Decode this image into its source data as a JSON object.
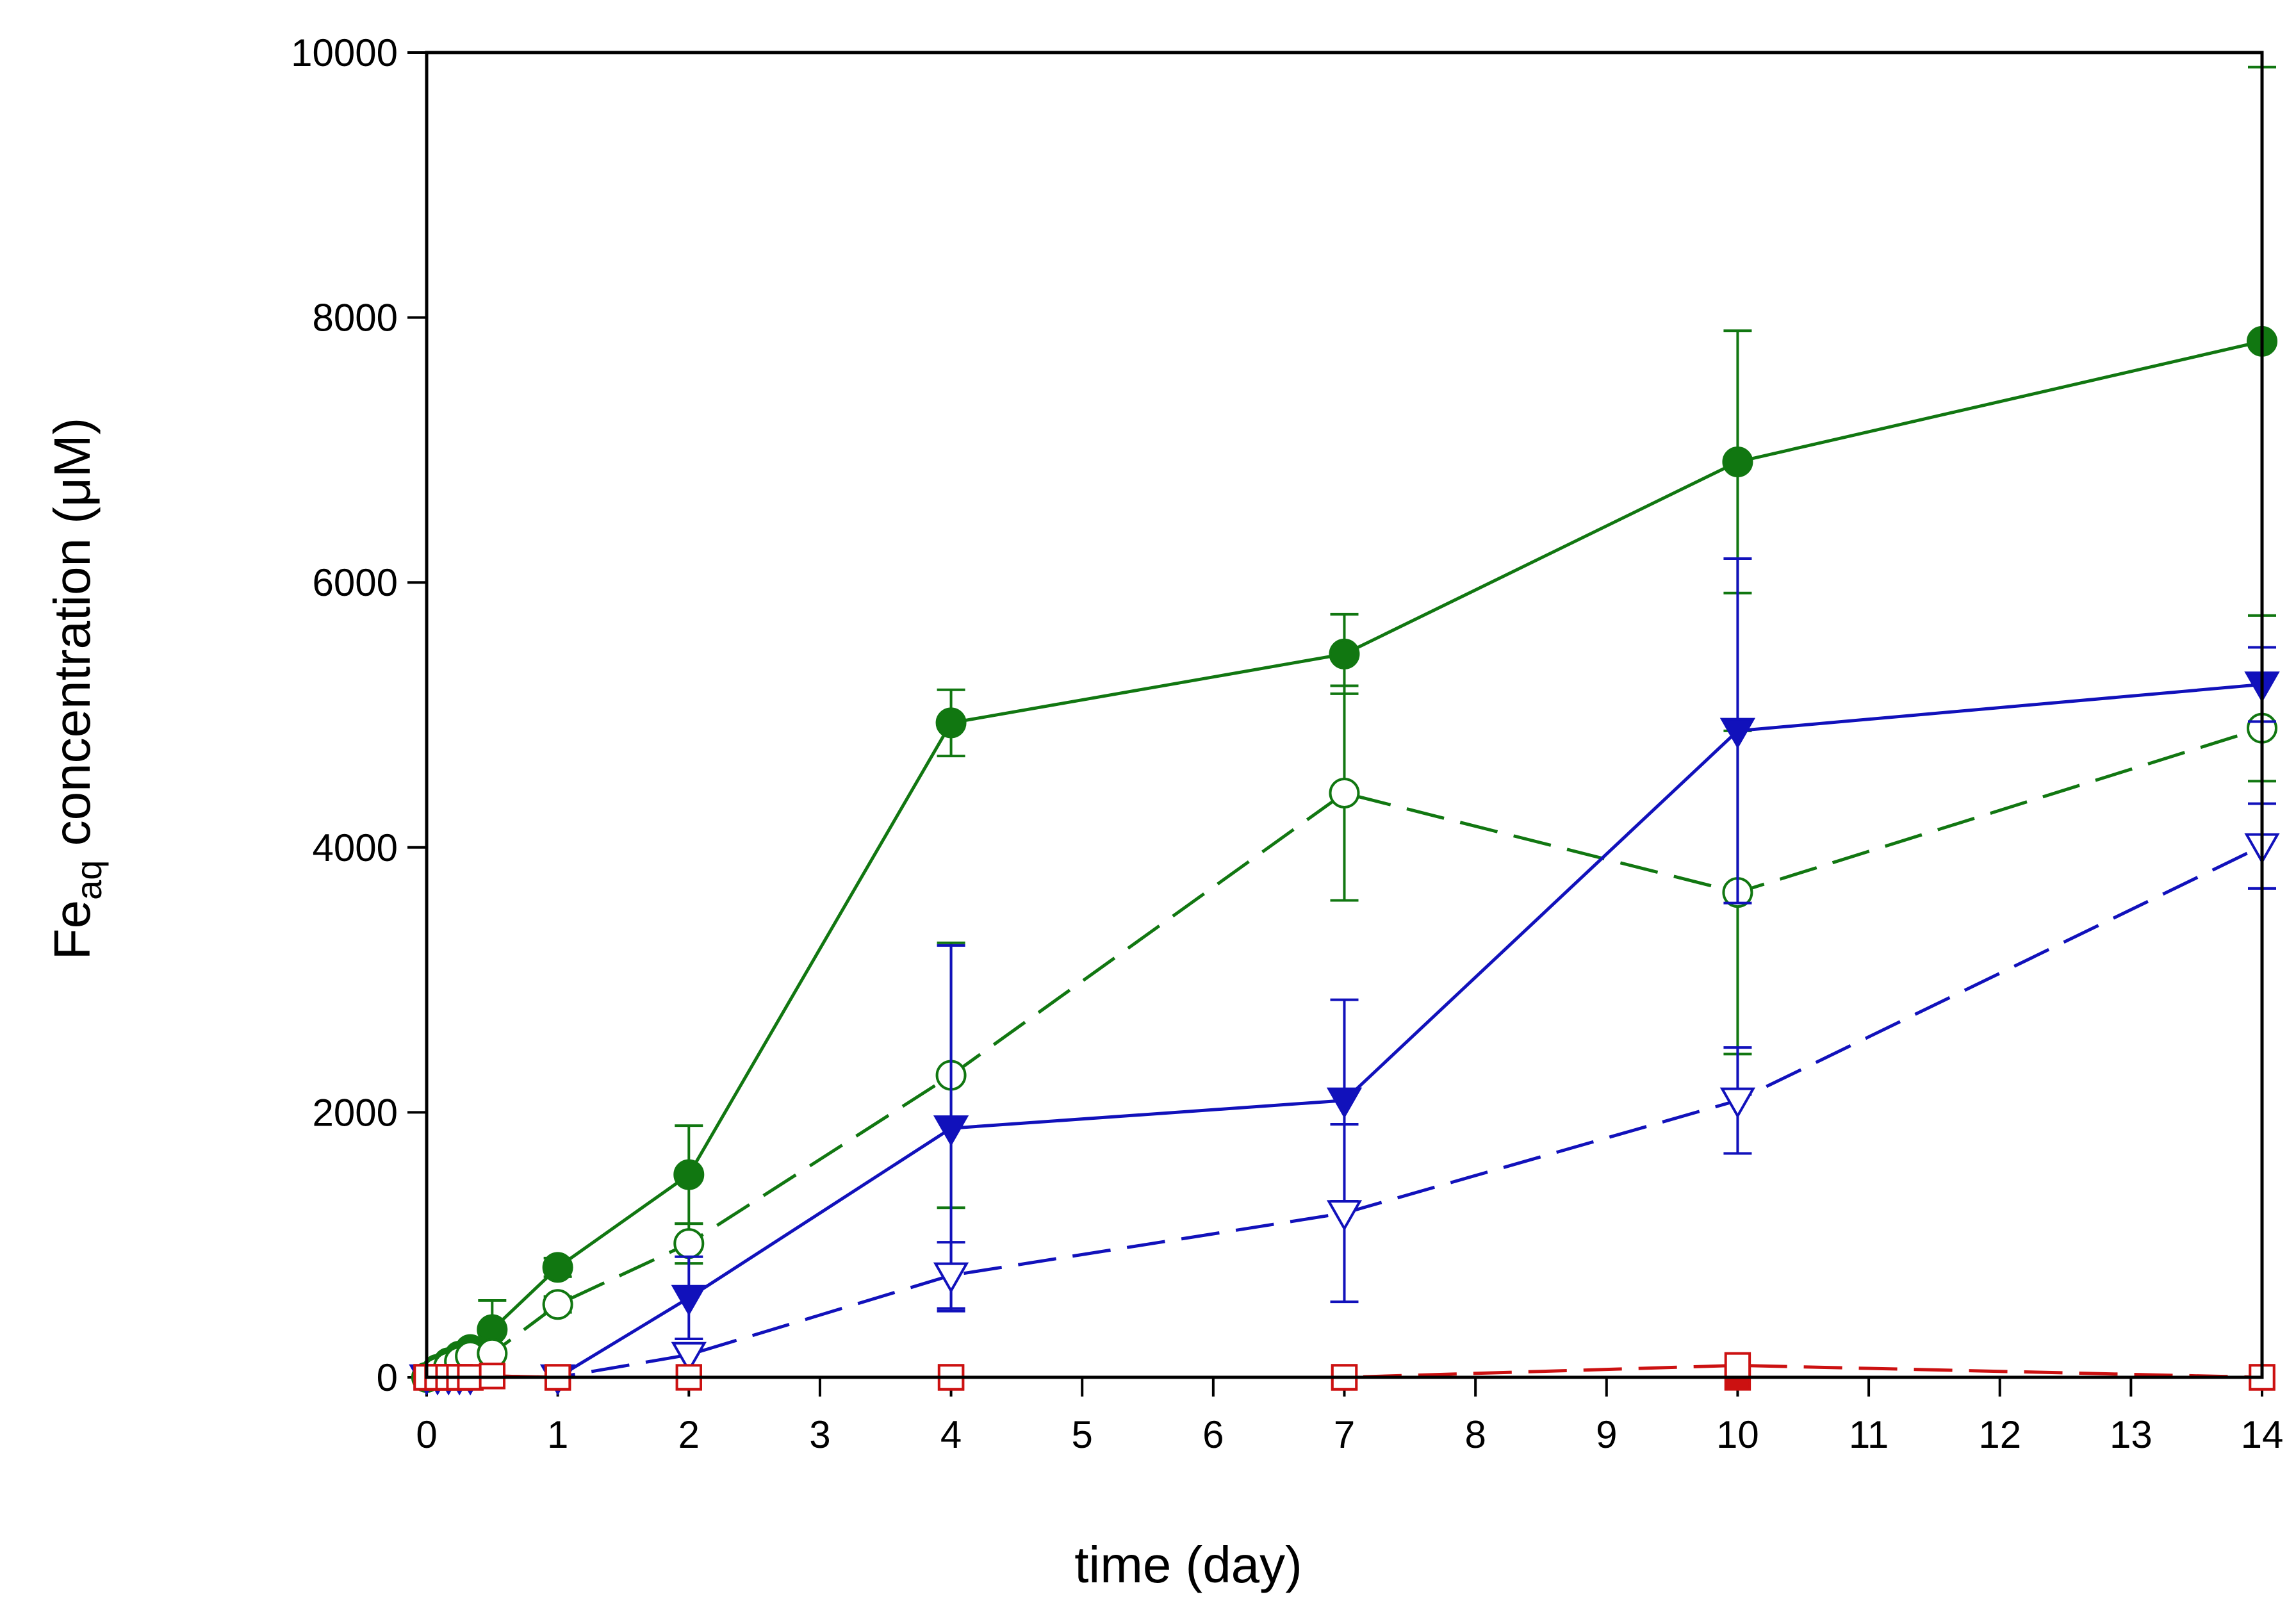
{
  "chart_data": {
    "type": "line",
    "title": "",
    "xlabel": "time (day)",
    "ylabel": {
      "prefix": "Fe",
      "subscript": "aq",
      "suffix": " concentration (μM)"
    },
    "xlim": [
      0,
      14
    ],
    "ylim": [
      0,
      10000
    ],
    "xticks": [
      0,
      1,
      2,
      3,
      4,
      5,
      6,
      7,
      8,
      9,
      10,
      11,
      12,
      13,
      14
    ],
    "yticks": [
      0,
      2000,
      4000,
      6000,
      8000,
      10000
    ],
    "grid": false,
    "legend": "none",
    "series": [
      {
        "name": "green filled circles",
        "color": "#117711",
        "marker": "circle",
        "filled": true,
        "dashed": false,
        "x": [
          0,
          0.083,
          0.167,
          0.25,
          0.333,
          0.5,
          1,
          2,
          4,
          7,
          10,
          14
        ],
        "y": [
          0,
          60,
          110,
          160,
          210,
          360,
          830,
          1530,
          4940,
          5460,
          6910,
          7820
        ],
        "err": [
          0,
          0,
          0,
          0,
          0,
          220,
          70,
          370,
          250,
          300,
          990,
          2070
        ]
      },
      {
        "name": "green open circles",
        "color": "#117711",
        "marker": "circle",
        "filled": false,
        "dashed": true,
        "x": [
          0,
          0.083,
          0.167,
          0.25,
          0.333,
          0.5,
          1,
          2,
          4,
          7,
          10,
          14
        ],
        "y": [
          0,
          40,
          80,
          120,
          160,
          180,
          550,
          1010,
          2280,
          4410,
          3660,
          4900
        ],
        "err": [
          0,
          0,
          0,
          0,
          0,
          0,
          60,
          150,
          1000,
          810,
          1220,
          400
        ]
      },
      {
        "name": "blue filled triangles",
        "color": "#1111bb",
        "marker": "triangle-down",
        "filled": true,
        "dashed": false,
        "x": [
          0,
          0.083,
          0.167,
          0.25,
          0.333,
          1,
          2,
          4,
          7,
          10,
          14
        ],
        "y": [
          0,
          0,
          0,
          0,
          0,
          0,
          600,
          1880,
          2090,
          4880,
          5230
        ],
        "err": [
          0,
          0,
          0,
          0,
          0,
          0,
          310,
          1380,
          760,
          1300,
          280
        ]
      },
      {
        "name": "blue open triangles",
        "color": "#1111bb",
        "marker": "triangle-down",
        "filled": false,
        "dashed": true,
        "x": [
          0,
          0.083,
          0.167,
          0.25,
          0.333,
          1,
          2,
          4,
          7,
          10,
          14
        ],
        "y": [
          0,
          0,
          0,
          0,
          0,
          0,
          170,
          770,
          1240,
          2090,
          4010
        ],
        "err": [
          0,
          0,
          0,
          0,
          0,
          0,
          0,
          250,
          670,
          400,
          320
        ]
      },
      {
        "name": "red filled squares",
        "color": "#cc1111",
        "marker": "square",
        "filled": true,
        "dashed": false,
        "x": [
          0,
          0.083,
          0.167,
          0.25,
          0.333,
          0.5,
          1,
          4,
          7,
          10,
          14
        ],
        "y": [
          0,
          0,
          0,
          0,
          0,
          10,
          0,
          0,
          0,
          0,
          0
        ],
        "err": [
          0,
          0,
          0,
          0,
          0,
          0,
          0,
          0,
          0,
          0,
          0
        ]
      },
      {
        "name": "red open squares",
        "color": "#cc1111",
        "marker": "square",
        "filled": false,
        "dashed": true,
        "x": [
          0,
          0.083,
          0.167,
          0.25,
          0.333,
          0.5,
          1,
          2,
          4,
          7,
          10,
          14
        ],
        "y": [
          0,
          0,
          0,
          0,
          0,
          10,
          0,
          0,
          0,
          0,
          90,
          0
        ],
        "err": [
          0,
          0,
          0,
          0,
          0,
          0,
          0,
          0,
          0,
          0,
          0,
          0
        ]
      }
    ]
  }
}
